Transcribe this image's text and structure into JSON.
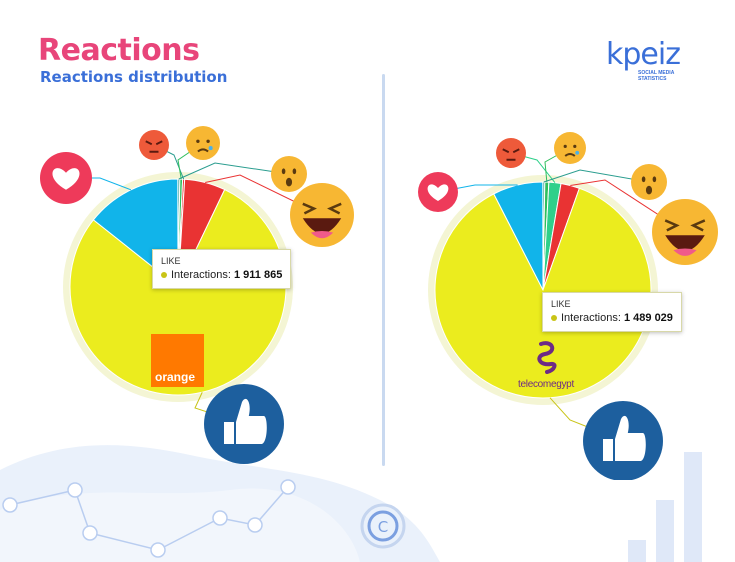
{
  "header": {
    "title": "Reactions",
    "subtitle": "Reactions distribution"
  },
  "brand": {
    "name": "kpeiz",
    "tagline_1": "SOCIAL MEDIA",
    "tagline_2": "STATISTICS"
  },
  "colors": {
    "like": "#ebec1e",
    "love": "#11b4ea",
    "haha": "#2fd08a",
    "wow": "#2fbe5d",
    "sad": "#ccc",
    "angry": "#e93333",
    "title": "#e8457a",
    "subtitle": "#3a6fd8"
  },
  "chart_data": [
    {
      "type": "pie",
      "brand": "orange",
      "logo_text": "orange",
      "slices": [
        {
          "name": "LIKE",
          "value_share": 0.77,
          "color": "#ebec1e"
        },
        {
          "name": "LOVE",
          "value_share": 0.14,
          "color": "#11b4ea"
        },
        {
          "name": "ANGRY",
          "value_share": 0.003,
          "color": "#e93333"
        },
        {
          "name": "SAD",
          "value_share": 0.004,
          "color": "#2fbe5d"
        },
        {
          "name": "WOW",
          "value_share": 0.003,
          "color": "#2a9d8f"
        },
        {
          "name": "HAHA",
          "value_share": 0.06,
          "color": "#e93333"
        }
      ],
      "tooltip": {
        "category": "LIKE",
        "label": "Interactions:",
        "value": "1 911 865"
      }
    },
    {
      "type": "pie",
      "brand": "telecomegypt",
      "logo_text": "telecomegypt",
      "slices": [
        {
          "name": "LIKE",
          "value_share": 0.87,
          "color": "#ebec1e"
        },
        {
          "name": "LOVE",
          "value_share": 0.075,
          "color": "#11b4ea"
        },
        {
          "name": "ANGRY",
          "value_share": 0.018,
          "color": "#2fd08a"
        },
        {
          "name": "SAD",
          "value_share": 0.006,
          "color": "#2fbe5d"
        },
        {
          "name": "WOW",
          "value_share": 0.003,
          "color": "#2a9d8f"
        },
        {
          "name": "HAHA",
          "value_share": 0.028,
          "color": "#e93333"
        }
      ],
      "tooltip": {
        "category": "LIKE",
        "label": "Interactions:",
        "value": "1 489 029"
      }
    }
  ]
}
